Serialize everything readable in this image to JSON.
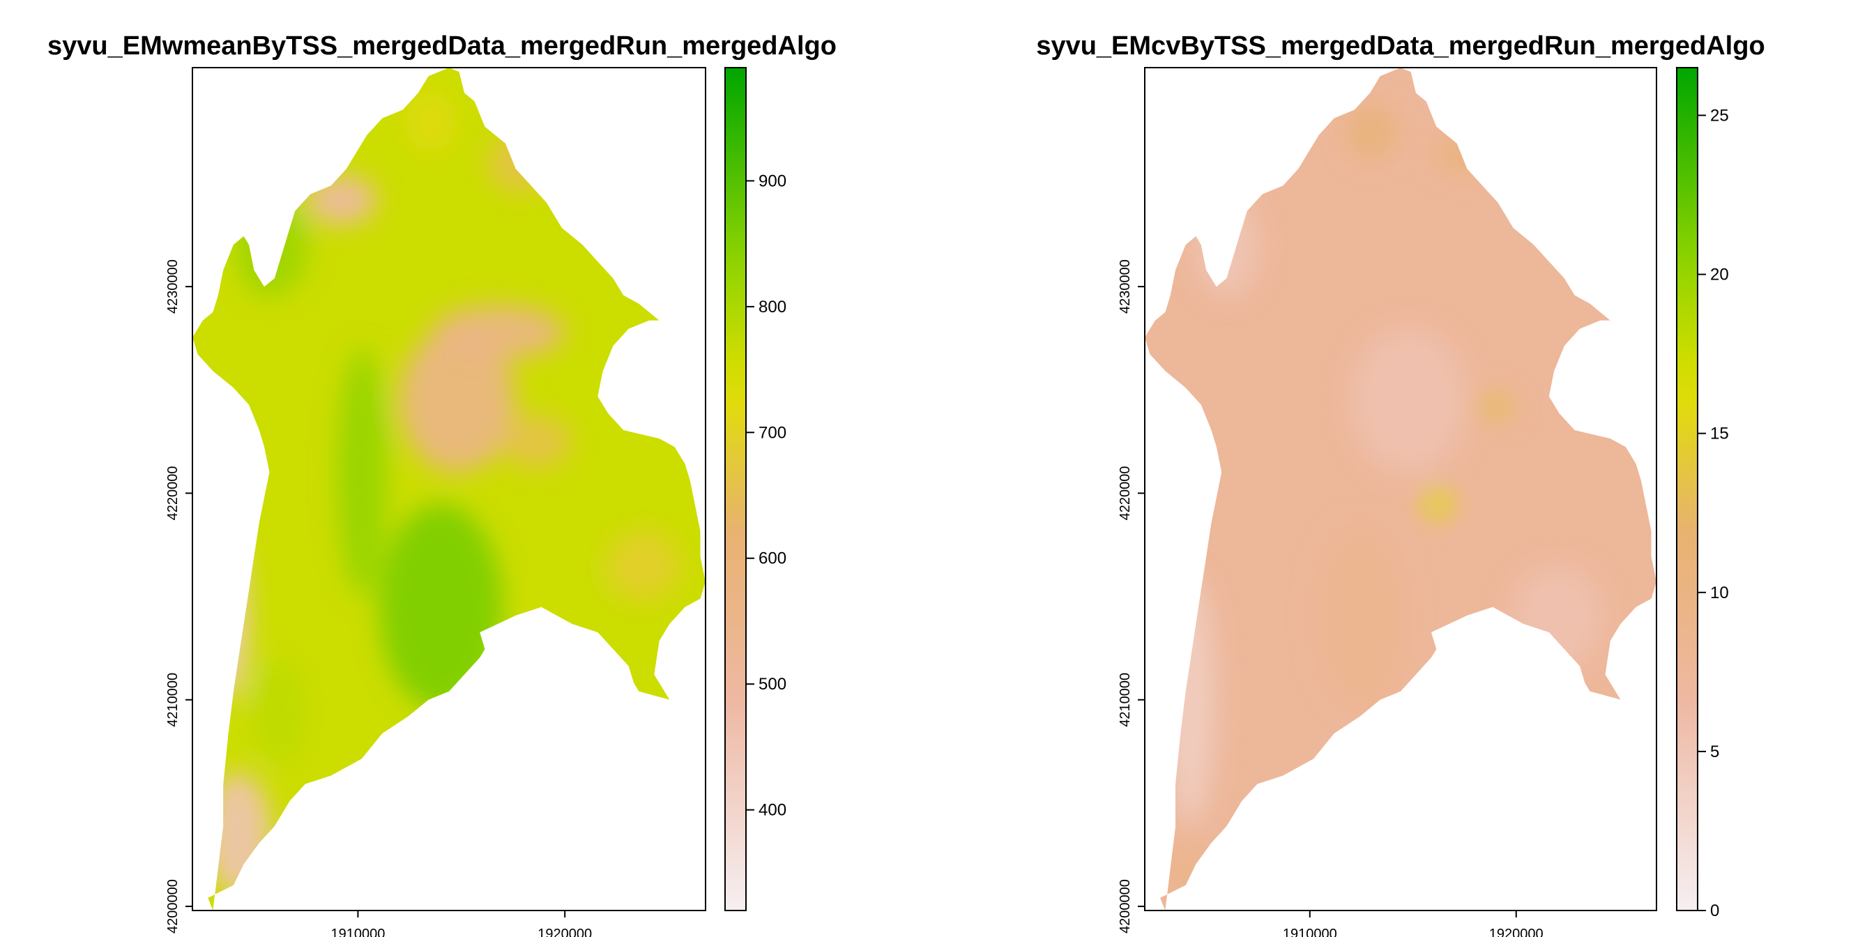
{
  "chart_data": [
    {
      "type": "heatmap",
      "title": "syvu_EMwmeanByTSS_mergedData_mergedRun_mergedAlgo",
      "xlabel": "",
      "ylabel": "",
      "x_ticks": [
        {
          "value": 1910000,
          "label": "1910000"
        },
        {
          "value": 1920000,
          "label": "1920000"
        }
      ],
      "y_ticks": [
        {
          "value": 4200000,
          "label": "4200000"
        },
        {
          "value": 4210000,
          "label": "4210000"
        },
        {
          "value": 4220000,
          "label": "4220000"
        },
        {
          "value": 4230000,
          "label": "4230000"
        }
      ],
      "xlim": [
        1902000,
        1926800
      ],
      "ylim": [
        4199800,
        4240600
      ],
      "colorbar": {
        "range": [
          320,
          990
        ],
        "ticks": [
          {
            "value": 400,
            "label": "400"
          },
          {
            "value": 500,
            "label": "500"
          },
          {
            "value": 600,
            "label": "600"
          },
          {
            "value": 700,
            "label": "700"
          },
          {
            "value": 800,
            "label": "800"
          },
          {
            "value": 900,
            "label": "900"
          }
        ]
      },
      "regions": [
        {
          "x": 1914800,
          "y": 4224500,
          "rx": 2800,
          "ry": 3500,
          "value": 560
        },
        {
          "x": 1916800,
          "y": 4227800,
          "rx": 3200,
          "ry": 1300,
          "value": 560
        },
        {
          "x": 1918600,
          "y": 4222500,
          "rx": 1700,
          "ry": 1300,
          "value": 660
        },
        {
          "x": 1904200,
          "y": 4203500,
          "rx": 1600,
          "ry": 3000,
          "value": 450
        },
        {
          "x": 1903800,
          "y": 4214000,
          "rx": 900,
          "ry": 4000,
          "value": 430
        },
        {
          "x": 1909200,
          "y": 4234200,
          "rx": 1700,
          "ry": 1200,
          "value": 480
        },
        {
          "x": 1923800,
          "y": 4216500,
          "rx": 1800,
          "ry": 1700,
          "value": 690
        },
        {
          "x": 1921000,
          "y": 4208500,
          "rx": 2000,
          "ry": 1200,
          "value": 700
        },
        {
          "x": 1914000,
          "y": 4214500,
          "rx": 3000,
          "ry": 5000,
          "value": 860
        },
        {
          "x": 1910200,
          "y": 4221000,
          "rx": 1200,
          "ry": 6000,
          "value": 830
        },
        {
          "x": 1905800,
          "y": 4232000,
          "rx": 1800,
          "ry": 2500,
          "value": 820
        },
        {
          "x": 1920500,
          "y": 4214500,
          "rx": 1600,
          "ry": 2200,
          "value": 760
        },
        {
          "x": 1913500,
          "y": 4238000,
          "rx": 1200,
          "ry": 1500,
          "value": 720
        },
        {
          "x": 1917800,
          "y": 4236000,
          "rx": 1500,
          "ry": 1400,
          "value": 660
        },
        {
          "x": 1906200,
          "y": 4209500,
          "rx": 1200,
          "ry": 2500,
          "value": 780
        }
      ],
      "base_value": 760
    },
    {
      "type": "heatmap",
      "title": "syvu_EMcvByTSS_mergedData_mergedRun_mergedAlgo",
      "xlabel": "",
      "ylabel": "",
      "x_ticks": [
        {
          "value": 1910000,
          "label": "1910000"
        },
        {
          "value": 1920000,
          "label": "1920000"
        }
      ],
      "y_ticks": [
        {
          "value": 4200000,
          "label": "4200000"
        },
        {
          "value": 4210000,
          "label": "4210000"
        },
        {
          "value": 4220000,
          "label": "4220000"
        },
        {
          "value": 4230000,
          "label": "4230000"
        }
      ],
      "xlim": [
        1902000,
        1926800
      ],
      "ylim": [
        4199800,
        4240600
      ],
      "colorbar": {
        "range": [
          0,
          26.5
        ],
        "ticks": [
          {
            "value": 0,
            "label": "0"
          },
          {
            "value": 5,
            "label": "5"
          },
          {
            "value": 10,
            "label": "10"
          },
          {
            "value": 15,
            "label": "15"
          },
          {
            "value": 20,
            "label": "20"
          },
          {
            "value": 25,
            "label": "25"
          }
        ]
      },
      "regions": [
        {
          "x": 1914800,
          "y": 4224500,
          "rx": 2800,
          "ry": 3500,
          "value": 5.5
        },
        {
          "x": 1916200,
          "y": 4219500,
          "rx": 700,
          "ry": 700,
          "value": 16
        },
        {
          "x": 1919000,
          "y": 4224200,
          "rx": 900,
          "ry": 600,
          "value": 13
        },
        {
          "x": 1913000,
          "y": 4237500,
          "rx": 1200,
          "ry": 1300,
          "value": 11
        },
        {
          "x": 1917500,
          "y": 4236500,
          "rx": 1400,
          "ry": 1000,
          "value": 10.5
        },
        {
          "x": 1904200,
          "y": 4210000,
          "rx": 1200,
          "ry": 6000,
          "value": 4
        },
        {
          "x": 1906000,
          "y": 4232000,
          "rx": 1500,
          "ry": 2500,
          "value": 5
        },
        {
          "x": 1922000,
          "y": 4214000,
          "rx": 2200,
          "ry": 2500,
          "value": 5.5
        },
        {
          "x": 1904000,
          "y": 4201500,
          "rx": 1400,
          "ry": 1500,
          "value": 9
        },
        {
          "x": 1912500,
          "y": 4214000,
          "rx": 2200,
          "ry": 4500,
          "value": 8.5
        }
      ],
      "base_value": 7.5
    }
  ]
}
